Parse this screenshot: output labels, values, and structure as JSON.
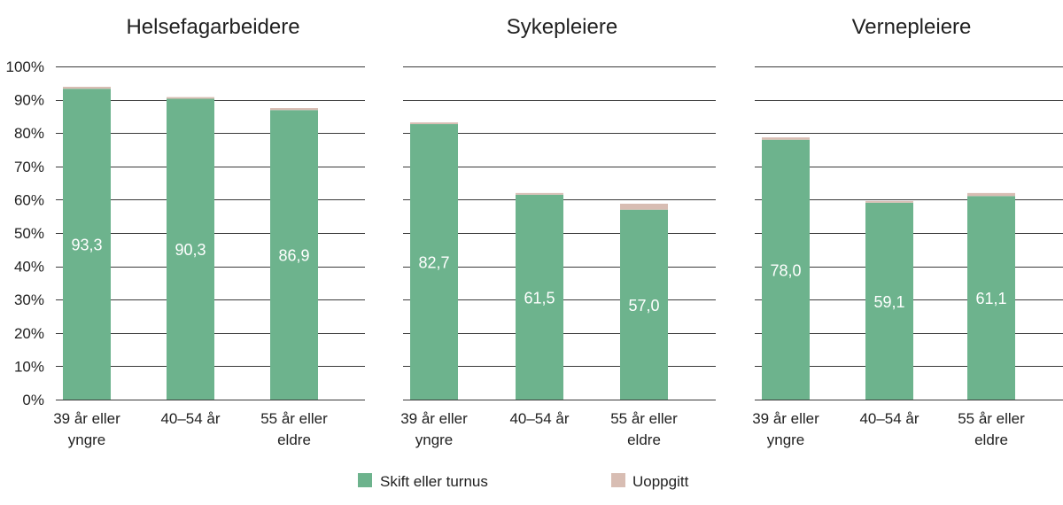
{
  "chart_data": {
    "type": "bar",
    "stacked": true,
    "categories": [
      "39 år eller yngre",
      "40–54 år",
      "55 år eller eldre"
    ],
    "yticks": [
      "0%",
      "10%",
      "20%",
      "30%",
      "40%",
      "50%",
      "60%",
      "70%",
      "80%",
      "90%",
      "100%"
    ],
    "ylim": [
      0,
      100
    ],
    "grid": true,
    "legend": {
      "position": "bottom",
      "entries": [
        {
          "name": "Skift eller turnus",
          "color": "#6db38d"
        },
        {
          "name": "Uoppgitt",
          "color": "#d8bdb3"
        }
      ]
    },
    "panels": [
      {
        "title": "Helsefagarbeidere",
        "series": [
          {
            "name": "Skift eller turnus",
            "values": [
              93.3,
              90.3,
              86.9
            ],
            "labels": [
              "93,3",
              "90,3",
              "86,9"
            ]
          },
          {
            "name": "Uoppgitt",
            "values": [
              0.6,
              0.5,
              0.6
            ]
          }
        ]
      },
      {
        "title": "Sykepleiere",
        "series": [
          {
            "name": "Skift eller turnus",
            "values": [
              82.7,
              61.5,
              57.0
            ],
            "labels": [
              "82,7",
              "61,5",
              "57,0"
            ]
          },
          {
            "name": "Uoppgitt",
            "values": [
              0.5,
              0.5,
              1.8
            ]
          }
        ]
      },
      {
        "title": "Vernepleiere",
        "series": [
          {
            "name": "Skift eller turnus",
            "values": [
              78.0,
              59.1,
              61.1
            ],
            "labels": [
              "78,0",
              "59,1",
              "61,1"
            ]
          },
          {
            "name": "Uoppgitt",
            "values": [
              0.7,
              0.5,
              0.9
            ]
          }
        ]
      }
    ]
  }
}
